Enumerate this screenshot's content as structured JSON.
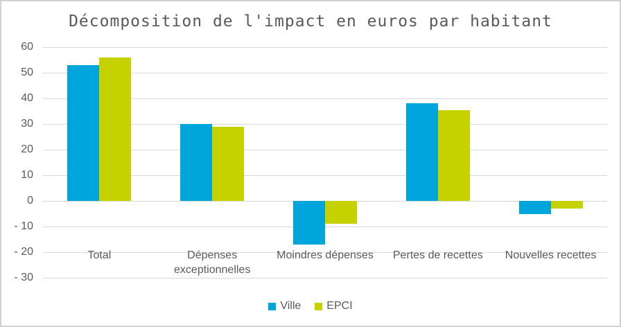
{
  "chart_data": {
    "type": "bar",
    "title": "Décomposition de l'impact en euros par habitant",
    "categories": [
      "Total",
      "Dépenses exceptionnelles",
      "Moindres dépenses",
      "Pertes de recettes",
      "Nouvelles recettes"
    ],
    "series": [
      {
        "name": "Ville",
        "color": "#00A5DC",
        "values": [
          53,
          30,
          -17,
          38,
          -5
        ]
      },
      {
        "name": "EPCI",
        "color": "#C6D100",
        "values": [
          56,
          29,
          -9,
          35.5,
          -3
        ]
      }
    ],
    "xlabel": "",
    "ylabel": "",
    "ylim": [
      -30,
      60
    ],
    "ytick_step": 10,
    "y_tick_labels": [
      "60",
      "50",
      "40",
      "30",
      "20",
      "10",
      "0",
      "- 10",
      "- 20",
      "- 30"
    ],
    "grid": true,
    "legend_position": "bottom",
    "colors": {
      "grid": "#D9D9D9",
      "text": "#595959",
      "frame_border": "#D2D2D2",
      "background": "#FFFFFF"
    }
  }
}
